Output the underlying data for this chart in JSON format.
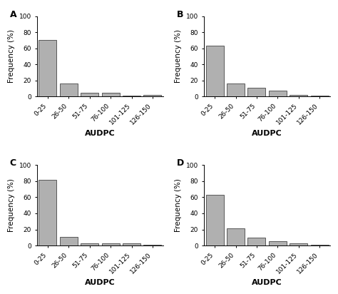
{
  "panels": [
    {
      "label": "A",
      "values": [
        70,
        16,
        5,
        5,
        1,
        2
      ],
      "categories": [
        "0-25",
        "26-50",
        "51-75",
        "76-100",
        "101-125",
        "126-150"
      ]
    },
    {
      "label": "B",
      "values": [
        63,
        16,
        11,
        7,
        2,
        1
      ],
      "categories": [
        "0-25",
        "26-50",
        "51-75",
        "76-100",
        "101-125",
        "126-150"
      ]
    },
    {
      "label": "C",
      "values": [
        82,
        11,
        3,
        3,
        3,
        1
      ],
      "categories": [
        "0-25",
        "26-50",
        "51-75",
        "76-100",
        "101-125",
        "126-150"
      ]
    },
    {
      "label": "D",
      "values": [
        63,
        21,
        10,
        5,
        3,
        1
      ],
      "categories": [
        "0-25",
        "26-50",
        "51-75",
        "76-100",
        "101-125",
        "126-150"
      ]
    }
  ],
  "ylim": [
    0,
    100
  ],
  "yticks": [
    0,
    20,
    40,
    60,
    80,
    100
  ],
  "ylabel": "Frequency (%)",
  "xlabel": "AUDPC",
  "bar_color": "#b0b0b0",
  "bar_edgecolor": "#444444",
  "background_color": "#ffffff",
  "tick_fontsize": 6.5,
  "label_fontsize": 7.5,
  "xlabel_fontsize": 8,
  "panel_label_fontsize": 9,
  "xtick_rotation": 45,
  "bar_width": 0.85
}
